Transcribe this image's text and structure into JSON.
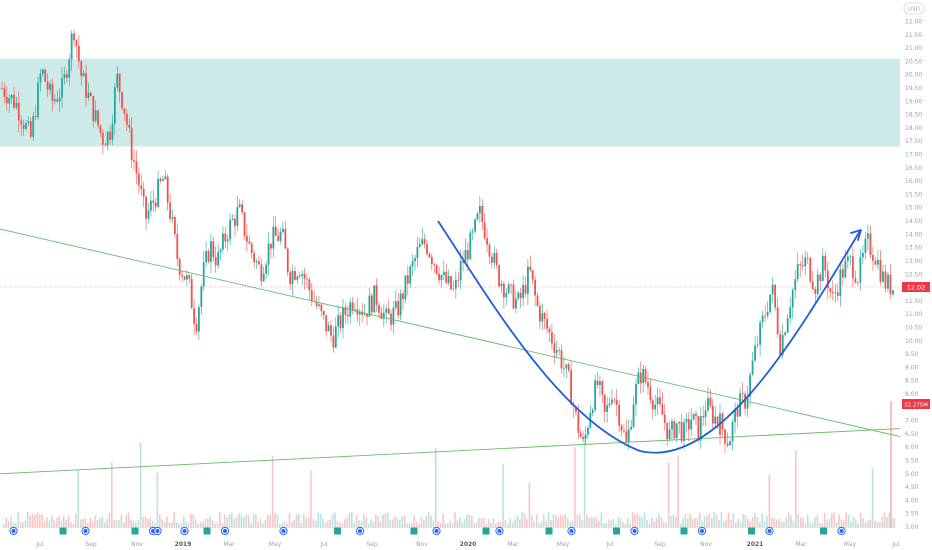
{
  "chart_data": {
    "type": "candlestick",
    "currency_badge": "USD",
    "y_axis": {
      "ticks": [
        "22.00",
        "21.50",
        "21.00",
        "20.50",
        "20.00",
        "19.50",
        "19.00",
        "18.50",
        "18.00",
        "17.50",
        "17.00",
        "16.50",
        "16.00",
        "15.50",
        "15.00",
        "14.50",
        "14.00",
        "13.50",
        "13.00",
        "12.50",
        "12.00",
        "11.50",
        "11.00",
        "10.50",
        "10.00",
        "9.50",
        "9.00",
        "8.50",
        "8.00",
        "7.50",
        "7.00",
        "6.50",
        "6.00",
        "5.50",
        "5.00",
        "4.50",
        "4.00",
        "3.50",
        "3.00"
      ],
      "range": [
        3.0,
        22.0
      ]
    },
    "x_axis": {
      "ticks": [
        {
          "label": "Jul",
          "bold": false
        },
        {
          "label": "Sep",
          "bold": false
        },
        {
          "label": "Nov",
          "bold": false
        },
        {
          "label": "2019",
          "bold": true
        },
        {
          "label": "Mar",
          "bold": false
        },
        {
          "label": "May",
          "bold": false
        },
        {
          "label": "Jul",
          "bold": false
        },
        {
          "label": "Sep",
          "bold": false
        },
        {
          "label": "Nov",
          "bold": false
        },
        {
          "label": "2020",
          "bold": true
        },
        {
          "label": "Mar",
          "bold": false
        },
        {
          "label": "May",
          "bold": false
        },
        {
          "label": "Jul",
          "bold": false
        },
        {
          "label": "Sep",
          "bold": false
        },
        {
          "label": "Nov",
          "bold": false
        },
        {
          "label": "2021",
          "bold": true
        },
        {
          "label": "Mar",
          "bold": false
        },
        {
          "label": "May",
          "bold": false
        },
        {
          "label": "Jul",
          "bold": false
        }
      ]
    },
    "last_price": "12.02",
    "volume_label": "32.275M",
    "price_path": [
      {
        "t": 0.0,
        "p": 19.5
      },
      {
        "t": 0.02,
        "p": 18.9
      },
      {
        "t": 0.04,
        "p": 17.6
      },
      {
        "t": 0.055,
        "p": 20.2
      },
      {
        "t": 0.07,
        "p": 19.0
      },
      {
        "t": 0.085,
        "p": 19.5
      },
      {
        "t": 0.1,
        "p": 21.8
      },
      {
        "t": 0.11,
        "p": 20.0
      },
      {
        "t": 0.125,
        "p": 18.8
      },
      {
        "t": 0.14,
        "p": 17.6
      },
      {
        "t": 0.15,
        "p": 17.8
      },
      {
        "t": 0.16,
        "p": 19.9
      },
      {
        "t": 0.17,
        "p": 18.8
      },
      {
        "t": 0.18,
        "p": 17.2
      },
      {
        "t": 0.19,
        "p": 16.0
      },
      {
        "t": 0.2,
        "p": 14.6
      },
      {
        "t": 0.21,
        "p": 15.2
      },
      {
        "t": 0.225,
        "p": 16.1
      },
      {
        "t": 0.235,
        "p": 14.7
      },
      {
        "t": 0.245,
        "p": 13.0
      },
      {
        "t": 0.26,
        "p": 12.1
      },
      {
        "t": 0.27,
        "p": 10.6
      },
      {
        "t": 0.28,
        "p": 12.5
      },
      {
        "t": 0.29,
        "p": 13.6
      },
      {
        "t": 0.3,
        "p": 13.0
      },
      {
        "t": 0.315,
        "p": 14.2
      },
      {
        "t": 0.33,
        "p": 14.9
      },
      {
        "t": 0.345,
        "p": 13.5
      },
      {
        "t": 0.36,
        "p": 12.6
      },
      {
        "t": 0.375,
        "p": 13.8
      },
      {
        "t": 0.39,
        "p": 14.0
      },
      {
        "t": 0.4,
        "p": 12.5
      },
      {
        "t": 0.415,
        "p": 12.8
      },
      {
        "t": 0.43,
        "p": 11.8
      },
      {
        "t": 0.445,
        "p": 10.9
      },
      {
        "t": 0.46,
        "p": 10.1
      },
      {
        "t": 0.475,
        "p": 10.9
      },
      {
        "t": 0.49,
        "p": 11.6
      },
      {
        "t": 0.505,
        "p": 11.1
      },
      {
        "t": 0.52,
        "p": 11.7
      },
      {
        "t": 0.535,
        "p": 10.8
      },
      {
        "t": 0.55,
        "p": 11.1
      },
      {
        "t": 0.565,
        "p": 12.3
      },
      {
        "t": 0.58,
        "p": 13.4
      },
      {
        "t": 0.59,
        "p": 13.7
      },
      {
        "t": 0.6,
        "p": 13.1
      },
      {
        "t": 0.615,
        "p": 12.3
      },
      {
        "t": 0.63,
        "p": 11.8
      },
      {
        "t": 0.64,
        "p": 12.9
      },
      {
        "t": 0.655,
        "p": 13.8
      },
      {
        "t": 0.665,
        "p": 14.8
      },
      {
        "t": 0.675,
        "p": 14.0
      },
      {
        "t": 0.69,
        "p": 12.5
      },
      {
        "t": 0.705,
        "p": 11.8
      },
      {
        "t": 0.72,
        "p": 11.4
      },
      {
        "t": 0.735,
        "p": 12.6
      },
      {
        "t": 0.745,
        "p": 11.3
      },
      {
        "t": 0.76,
        "p": 10.4
      },
      {
        "t": 0.775,
        "p": 9.6
      },
      {
        "t": 0.79,
        "p": 8.4
      },
      {
        "t": 0.8,
        "p": 7.0
      },
      {
        "t": 0.81,
        "p": 6.0
      },
      {
        "t": 0.82,
        "p": 7.6
      },
      {
        "t": 0.83,
        "p": 8.4
      },
      {
        "t": 0.84,
        "p": 7.1
      },
      {
        "t": 0.85,
        "p": 8.2
      },
      {
        "t": 0.86,
        "p": 7.2
      },
      {
        "t": 0.87,
        "p": 6.0
      },
      {
        "t": 0.88,
        "p": 7.9
      },
      {
        "t": 0.89,
        "p": 8.8
      },
      {
        "t": 0.9,
        "p": 8.3
      },
      {
        "t": 0.91,
        "p": 7.6
      },
      {
        "t": 0.92,
        "p": 7.2
      },
      {
        "t": 0.93,
        "p": 6.4
      },
      {
        "t": 0.94,
        "p": 6.9
      },
      {
        "t": 0.95,
        "p": 6.5
      },
      {
        "t": 0.96,
        "p": 7.1
      },
      {
        "t": 0.97,
        "p": 6.6
      },
      {
        "t": 0.98,
        "p": 7.6
      },
      {
        "t": 0.99,
        "p": 7.2
      },
      {
        "t": 1.0,
        "p": 6.9
      }
    ],
    "price_path_2": [
      {
        "t": 0.0,
        "p": 6.9
      },
      {
        "t": 0.05,
        "p": 6.2
      },
      {
        "t": 0.1,
        "p": 7.5
      },
      {
        "t": 0.15,
        "p": 7.8
      },
      {
        "t": 0.2,
        "p": 9.5
      },
      {
        "t": 0.25,
        "p": 10.8
      },
      {
        "t": 0.3,
        "p": 12.0
      },
      {
        "t": 0.35,
        "p": 9.8
      },
      {
        "t": 0.4,
        "p": 11.4
      },
      {
        "t": 0.45,
        "p": 12.6
      },
      {
        "t": 0.5,
        "p": 13.0
      },
      {
        "t": 0.55,
        "p": 12.1
      },
      {
        "t": 0.6,
        "p": 12.9
      },
      {
        "t": 0.65,
        "p": 11.5
      },
      {
        "t": 0.7,
        "p": 12.5
      },
      {
        "t": 0.75,
        "p": 13.0
      },
      {
        "t": 0.8,
        "p": 12.4
      },
      {
        "t": 0.85,
        "p": 13.7
      },
      {
        "t": 0.9,
        "p": 13.2
      },
      {
        "t": 0.95,
        "p": 12.2
      },
      {
        "t": 1.0,
        "p": 12.0
      }
    ],
    "zone": {
      "from": 17.3,
      "to": 20.6,
      "color": "#b2dfdb"
    },
    "trendlines": [
      {
        "from": {
          "date_frac": 0.0,
          "price": 14.2
        },
        "to": {
          "date_frac": 1.0,
          "price": 6.4
        },
        "color": "#66bb6a"
      },
      {
        "from": {
          "date_frac": 0.0,
          "price": 5.0
        },
        "to": {
          "date_frac": 1.0,
          "price": 6.7
        },
        "color": "#66bb6a"
      }
    ],
    "volume_badge_color": "#f23645",
    "price_badge_color": "#f23645",
    "arc_color": "#1e5fd8",
    "up_color": "#26a69a",
    "down_color": "#ef5350",
    "events": [
      {
        "kind": "D",
        "x": 0.015
      },
      {
        "kind": "E",
        "x": 0.07
      },
      {
        "kind": "D",
        "x": 0.095
      },
      {
        "kind": "E",
        "x": 0.15
      },
      {
        "kind": "D",
        "x": 0.17
      },
      {
        "kind": "D",
        "x": 0.175
      },
      {
        "kind": "D",
        "x": 0.205
      },
      {
        "kind": "E",
        "x": 0.23
      },
      {
        "kind": "D",
        "x": 0.25
      },
      {
        "kind": "D",
        "x": 0.315
      },
      {
        "kind": "E",
        "x": 0.375
      },
      {
        "kind": "D",
        "x": 0.4
      },
      {
        "kind": "E",
        "x": 0.46
      },
      {
        "kind": "D",
        "x": 0.485
      },
      {
        "kind": "E",
        "x": 0.54
      },
      {
        "kind": "D",
        "x": 0.555
      },
      {
        "kind": "E",
        "x": 0.61
      },
      {
        "kind": "D",
        "x": 0.635
      },
      {
        "kind": "E",
        "x": 0.685
      },
      {
        "kind": "D",
        "x": 0.705
      },
      {
        "kind": "E",
        "x": 0.76
      },
      {
        "kind": "D",
        "x": 0.78
      },
      {
        "kind": "E",
        "x": 0.835
      },
      {
        "kind": "D",
        "x": 0.855
      },
      {
        "kind": "E",
        "x": 0.915
      },
      {
        "kind": "D",
        "x": 0.935
      }
    ]
  }
}
